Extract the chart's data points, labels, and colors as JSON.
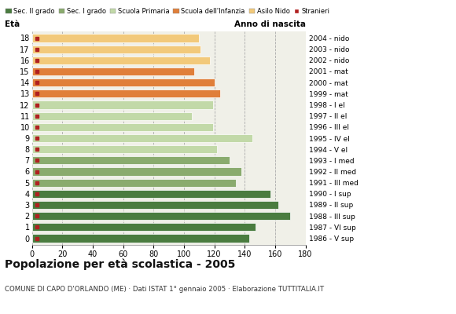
{
  "ages": [
    18,
    17,
    16,
    15,
    14,
    13,
    12,
    11,
    10,
    9,
    8,
    7,
    6,
    5,
    4,
    3,
    2,
    1,
    0
  ],
  "years": [
    "1986 - V sup",
    "1987 - VI sup",
    "1988 - III sup",
    "1989 - II sup",
    "1990 - I sup",
    "1991 - III med",
    "1992 - II med",
    "1993 - I med",
    "1994 - V el",
    "1995 - IV el",
    "1996 - III el",
    "1997 - II el",
    "1998 - I el",
    "1999 - mat",
    "2000 - mat",
    "2001 - mat",
    "2002 - nido",
    "2003 - nido",
    "2004 - nido"
  ],
  "values": [
    143,
    147,
    170,
    162,
    157,
    134,
    138,
    130,
    122,
    145,
    119,
    105,
    119,
    124,
    120,
    107,
    117,
    111,
    110
  ],
  "stranieri": [
    3,
    7,
    4,
    6,
    6,
    5,
    5,
    4,
    4,
    4,
    4,
    4,
    3,
    9,
    4,
    4,
    5,
    4,
    3
  ],
  "category_colors": [
    "#4a7c3f",
    "#4a7c3f",
    "#4a7c3f",
    "#4a7c3f",
    "#4a7c3f",
    "#8aab6e",
    "#8aab6e",
    "#8aab6e",
    "#c2d9a8",
    "#c2d9a8",
    "#c2d9a8",
    "#c2d9a8",
    "#c2d9a8",
    "#e07f3a",
    "#e07f3a",
    "#e07f3a",
    "#f2c97a",
    "#f2c97a",
    "#f2c97a"
  ],
  "stranieri_color": "#b02020",
  "legend_labels": [
    "Sec. II grado",
    "Sec. I grado",
    "Scuola Primaria",
    "Scuola dell'Infanzia",
    "Asilo Nido",
    "Stranieri"
  ],
  "legend_colors": [
    "#4a7c3f",
    "#8aab6e",
    "#c2d9a8",
    "#e07f3a",
    "#f2c97a",
    "#b02020"
  ],
  "title": "Popolazione per età scolastica - 2005",
  "subtitle": "COMUNE DI CAPO D'ORLANDO (ME) · Dati ISTAT 1° gennaio 2005 · Elaborazione TUTTITALIA.IT",
  "ylabel_left": "Età",
  "ylabel_right": "Anno di nascita",
  "xlim": [
    0,
    180
  ],
  "xticks": [
    0,
    20,
    40,
    60,
    80,
    100,
    120,
    140,
    160,
    180
  ],
  "bg_color": "#ffffff",
  "plot_bg": "#f0f0e8",
  "bar_height": 0.72
}
